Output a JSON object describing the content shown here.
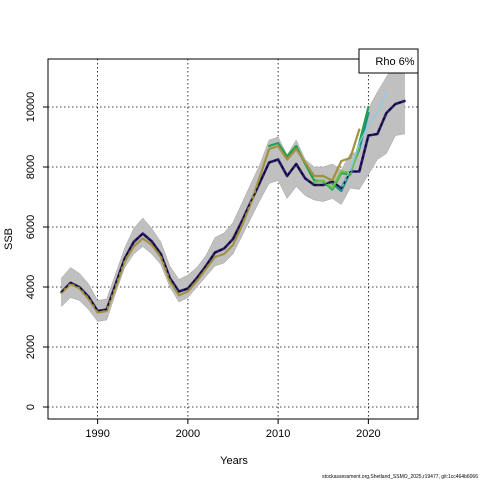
{
  "chart_data": {
    "type": "line",
    "xlabel": "Years",
    "ylabel": "SSB",
    "xlim": [
      1984.5,
      2025.5
    ],
    "ylim": [
      -400,
      11600
    ],
    "x_ticks": [
      1990,
      2000,
      2010,
      2020
    ],
    "y_ticks": [
      0,
      2000,
      4000,
      6000,
      8000,
      10000
    ],
    "grid": true,
    "legend_label": "Rho 6%",
    "legend_position": "top-right",
    "caption": "stockassessment.org,Shetland_SSMO_2025,r19477, git:1cc464b6066",
    "confidence_band": {
      "years": [
        1986,
        1987,
        1988,
        1989,
        1990,
        1991,
        1992,
        1993,
        1994,
        1995,
        1996,
        1997,
        1998,
        1999,
        2000,
        2001,
        2002,
        2003,
        2004,
        2005,
        2006,
        2007,
        2008,
        2009,
        2010,
        2011,
        2012,
        2013,
        2014,
        2015,
        2016,
        2017,
        2018,
        2019,
        2020,
        2021,
        2022,
        2023,
        2024
      ],
      "lower": [
        3350,
        3650,
        3550,
        3250,
        2850,
        2900,
        3800,
        4650,
        5100,
        5350,
        5100,
        4750,
        4000,
        3500,
        3650,
        4000,
        4350,
        4700,
        4800,
        5100,
        5700,
        6300,
        6900,
        7450,
        7550,
        6950,
        7350,
        7050,
        6900,
        6850,
        6950,
        6750,
        7300,
        7250,
        7750,
        8250,
        8450,
        9050,
        9100
      ],
      "upper": [
        4300,
        4650,
        4450,
        4100,
        3550,
        3600,
        4450,
        5300,
        5950,
        6300,
        5950,
        5500,
        4700,
        4250,
        4400,
        4650,
        5050,
        5650,
        5800,
        6150,
        6800,
        7450,
        8100,
        8900,
        9000,
        8400,
        8900,
        8250,
        8000,
        8000,
        8100,
        7900,
        8450,
        8500,
        9950,
        10500,
        11000,
        11450,
        11450
      ]
    },
    "series": [
      {
        "color": "#bfbfbf",
        "width": 1.2,
        "x": [
          1986,
          1987,
          1988,
          1989,
          1990,
          1991,
          1992,
          1993,
          1994,
          1995,
          1996,
          1997,
          1998,
          1999,
          2000,
          2001,
          2002,
          2003,
          2004,
          2005,
          2006,
          2007,
          2008,
          2009,
          2010,
          2011,
          2012,
          2013,
          2014,
          2015,
          2016,
          2017,
          2018,
          2019,
          2020
        ],
        "y": [
          3830,
          4140,
          3990,
          3670,
          3210,
          3250,
          4100,
          4950,
          5500,
          5780,
          5520,
          5100,
          4300,
          3850,
          3950,
          4300,
          4650,
          5080,
          5180,
          5500,
          6150,
          6900,
          7750,
          8600,
          8750,
          8300,
          8650,
          8150,
          7600,
          7600,
          7500,
          7800,
          7800,
          8700,
          9700
        ]
      },
      {
        "color": "#2a1a6e",
        "width": 2.6,
        "x": [
          1986,
          1987,
          1988,
          1989,
          1990,
          1991,
          1992,
          1993,
          1994,
          1995,
          1996,
          1997,
          1998,
          1999,
          2000,
          2001,
          2002,
          2003,
          2004,
          2005,
          2006,
          2007,
          2008,
          2009,
          2010,
          2011,
          2012,
          2013,
          2014,
          2015,
          2016,
          2017,
          2018,
          2019,
          2020,
          2021,
          2022,
          2023,
          2024
        ],
        "y": [
          3830,
          4140,
          3990,
          3670,
          3200,
          3250,
          4100,
          4950,
          5500,
          5780,
          5520,
          5100,
          4300,
          3850,
          3950,
          4300,
          4700,
          5150,
          5280,
          5600,
          6200,
          6850,
          7500,
          8150,
          8250,
          7700,
          8100,
          7620,
          7400,
          7400,
          7520,
          7280,
          7850,
          7850,
          9050,
          9100,
          9800,
          10100,
          10200
        ]
      },
      {
        "color": "#1e8c8c",
        "width": 2.2,
        "x": [
          2016,
          2017,
          2018,
          2019,
          2020
        ],
        "y": [
          7450,
          7200,
          7850,
          8600,
          9800
        ]
      },
      {
        "color": "#21a04f",
        "width": 2.2,
        "x": [
          2009,
          2010,
          2011,
          2012,
          2013,
          2014,
          2015,
          2016,
          2017,
          2018,
          2019,
          2020
        ],
        "y": [
          8700,
          8800,
          8350,
          8700,
          8100,
          7550,
          7520,
          7250,
          7800,
          7750,
          8800,
          10000
        ]
      },
      {
        "color": "#6cc04a",
        "width": 2.2,
        "x": [
          2014,
          2015,
          2016,
          2017,
          2018,
          2019
        ],
        "y": [
          7500,
          7550,
          7300,
          7850,
          7800,
          8700
        ]
      },
      {
        "color": "#a09242",
        "width": 2.2,
        "x": [
          1986,
          1987,
          1988,
          1989,
          1990,
          1991,
          1992,
          1993,
          1994,
          1995,
          1996,
          1997,
          1998,
          1999,
          2000,
          2001,
          2002,
          2003,
          2004,
          2005,
          2006,
          2007,
          2008,
          2009,
          2010,
          2011,
          2012,
          2013,
          2014,
          2015,
          2016,
          2017,
          2018,
          2019
        ],
        "y": [
          3800,
          4100,
          3950,
          3600,
          3150,
          3200,
          4000,
          4850,
          5350,
          5620,
          5400,
          5000,
          4200,
          3720,
          3850,
          4200,
          4600,
          5000,
          5100,
          5400,
          6050,
          6800,
          7700,
          8600,
          8700,
          8250,
          8600,
          8150,
          7700,
          7700,
          7550,
          8200,
          8300,
          9250
        ]
      },
      {
        "color": "#87ceeb",
        "width": 1.2,
        "x": [
          2017,
          2018,
          2019,
          2020,
          2021,
          2022
        ],
        "y": [
          7300,
          7900,
          8800,
          9400,
          9800,
          10500
        ]
      }
    ]
  }
}
